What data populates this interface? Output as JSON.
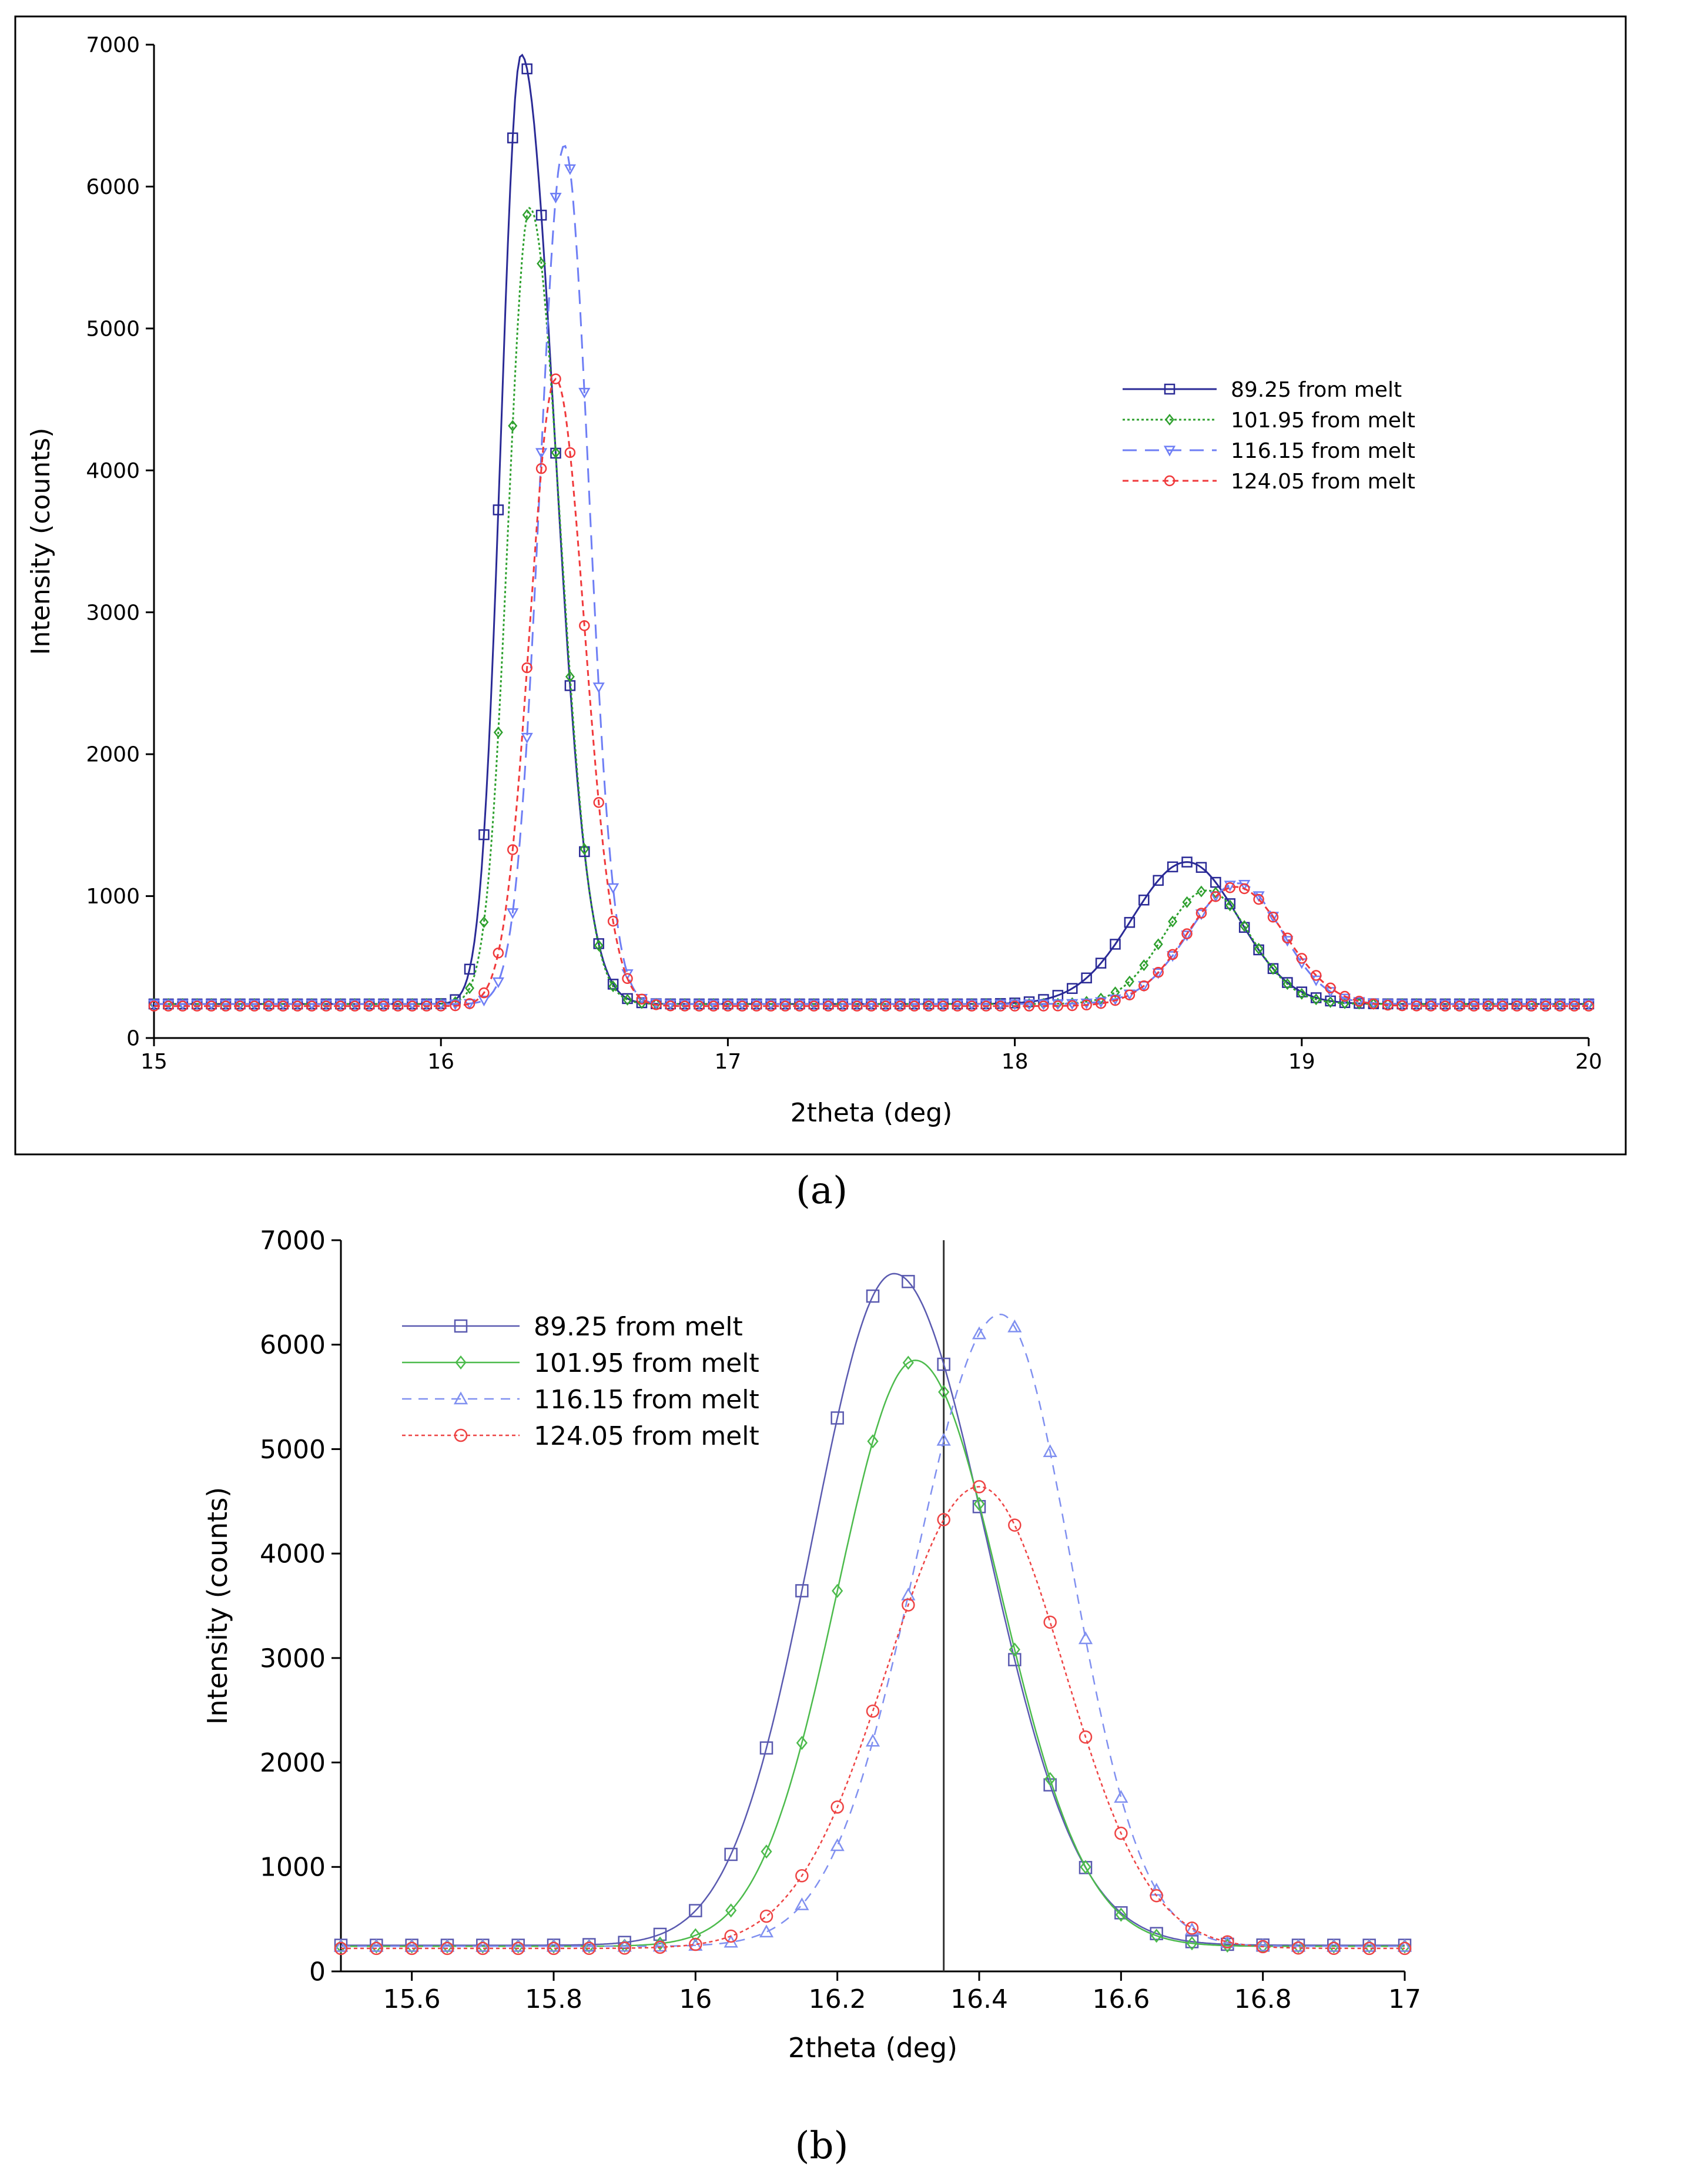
{
  "series_styles": [
    {
      "color": "#2a2a96",
      "dash": "",
      "marker": "square"
    },
    {
      "color": "#2ea02e",
      "dash": "4 4",
      "marker": "diamond"
    },
    {
      "color": "#6e7ef5",
      "dash": "24 14",
      "marker": "triangle-down"
    },
    {
      "color": "#f0393b",
      "dash": "10 7",
      "marker": "circle"
    }
  ],
  "series_styles_b": [
    {
      "color": "#5a5ab0",
      "dash": "",
      "marker": "square"
    },
    {
      "color": "#4cbb4c",
      "dash": "",
      "marker": "diamond"
    },
    {
      "color": "#8090f0",
      "dash": "16 12",
      "marker": "triangle-up"
    },
    {
      "color": "#ee4444",
      "dash": "6 5",
      "marker": "circle"
    }
  ],
  "chart_data": [
    {
      "type": "line",
      "panel_label": "(a)",
      "title": "",
      "xlabel": "2theta (deg)",
      "ylabel": "Intensity (counts)",
      "xlim": [
        15,
        20
      ],
      "ylim": [
        0,
        7000
      ],
      "xticks": [
        "15",
        "16",
        "17",
        "18",
        "19",
        "20"
      ],
      "xtick_values": [
        15,
        16,
        17,
        18,
        19,
        20
      ],
      "yticks": [
        "0",
        "1000",
        "2000",
        "3000",
        "4000",
        "5000",
        "6000",
        "7000"
      ],
      "ytick_values": [
        0,
        1000,
        2000,
        3000,
        4000,
        5000,
        6000,
        7000
      ],
      "legend_position": "right-middle",
      "series": [
        {
          "name": "89.25 from melt",
          "peaks": [
            [
              16.28,
              6690,
              0.07,
              0.115
            ],
            [
              18.6,
              1000,
              0.19,
              0.18
            ]
          ],
          "baseline": 240
        },
        {
          "name": "101.95 from melt",
          "peaks": [
            [
              16.31,
              5610,
              0.075,
              0.105
            ],
            [
              18.67,
              800,
              0.15,
              0.15
            ]
          ],
          "baseline": 240
        },
        {
          "name": "116.15 from melt",
          "peaks": [
            [
              16.43,
              6050,
              0.085,
              0.085
            ],
            [
              18.78,
              850,
              0.17,
              0.15
            ]
          ],
          "baseline": 240
        },
        {
          "name": "124.05 from melt",
          "peaks": [
            [
              16.4,
              4420,
              0.09,
              0.1
            ],
            [
              18.77,
              840,
              0.17,
              0.17
            ]
          ],
          "baseline": 225
        }
      ]
    },
    {
      "type": "line",
      "panel_label": "(b)",
      "title": "",
      "xlabel": "2theta (deg)",
      "ylabel": "Intensity (counts)",
      "xlim": [
        15.5,
        17
      ],
      "ylim": [
        0,
        7000
      ],
      "xticks": [
        "15.6",
        "15.8",
        "16",
        "16.2",
        "16.4",
        "16.6",
        "16.8",
        "17"
      ],
      "xtick_values": [
        15.6,
        15.8,
        16,
        16.2,
        16.4,
        16.6,
        16.8,
        17
      ],
      "yticks": [
        "0",
        "1000",
        "2000",
        "3000",
        "4000",
        "5000",
        "6000",
        "7000"
      ],
      "ytick_values": [
        0,
        1000,
        2000,
        3000,
        4000,
        5000,
        6000,
        7000
      ],
      "vertical_line_x": 16.35,
      "legend_position": "top-left",
      "series": [
        {
          "name": "89.25 from melt",
          "peaks": [
            [
              16.28,
              6430,
              0.115,
              0.13
            ]
          ],
          "baseline": 250
        },
        {
          "name": "101.95 from melt",
          "peaks": [
            [
              16.31,
              5610,
              0.11,
              0.12
            ]
          ],
          "baseline": 240
        },
        {
          "name": "116.15 from melt",
          "peaks": [
            [
              16.43,
              6050,
              0.12,
              0.1
            ]
          ],
          "baseline": 240
        },
        {
          "name": "124.05 from melt",
          "peaks": [
            [
              16.4,
              4420,
              0.13,
              0.12
            ]
          ],
          "baseline": 220
        }
      ]
    }
  ]
}
